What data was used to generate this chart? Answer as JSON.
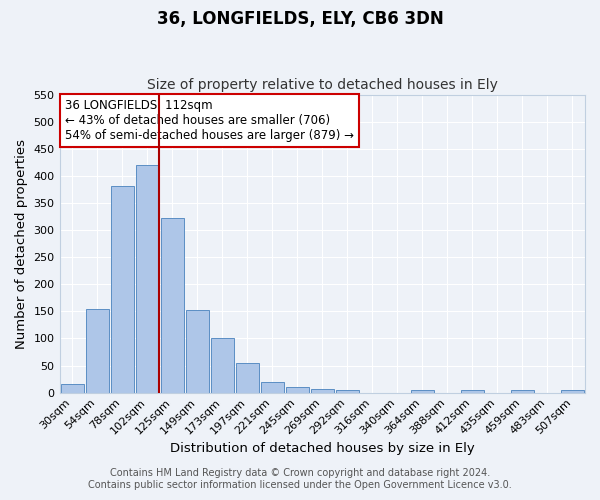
{
  "title": "36, LONGFIELDS, ELY, CB6 3DN",
  "subtitle": "Size of property relative to detached houses in Ely",
  "xlabel": "Distribution of detached houses by size in Ely",
  "ylabel": "Number of detached properties",
  "categories": [
    "30sqm",
    "54sqm",
    "78sqm",
    "102sqm",
    "125sqm",
    "149sqm",
    "173sqm",
    "197sqm",
    "221sqm",
    "245sqm",
    "269sqm",
    "292sqm",
    "316sqm",
    "340sqm",
    "364sqm",
    "388sqm",
    "412sqm",
    "435sqm",
    "459sqm",
    "483sqm",
    "507sqm"
  ],
  "values": [
    15,
    155,
    382,
    420,
    322,
    153,
    100,
    55,
    20,
    10,
    6,
    4,
    0,
    0,
    5,
    0,
    5,
    0,
    5,
    0,
    4
  ],
  "bar_color": "#aec6e8",
  "bar_edge_color": "#5b8ec4",
  "ylim": [
    0,
    550
  ],
  "yticks": [
    0,
    50,
    100,
    150,
    200,
    250,
    300,
    350,
    400,
    450,
    500,
    550
  ],
  "vline_color": "#aa0000",
  "annotation_title": "36 LONGFIELDS: 112sqm",
  "annotation_line1": "← 43% of detached houses are smaller (706)",
  "annotation_line2": "54% of semi-detached houses are larger (879) →",
  "annotation_box_color": "#ffffff",
  "annotation_box_edge": "#cc0000",
  "footer1": "Contains HM Land Registry data © Crown copyright and database right 2024.",
  "footer2": "Contains public sector information licensed under the Open Government Licence v3.0.",
  "background_color": "#eef2f8",
  "grid_color": "#ffffff",
  "title_fontsize": 12,
  "subtitle_fontsize": 10,
  "axis_label_fontsize": 9.5,
  "tick_fontsize": 8,
  "footer_fontsize": 7,
  "annot_fontsize": 8.5
}
